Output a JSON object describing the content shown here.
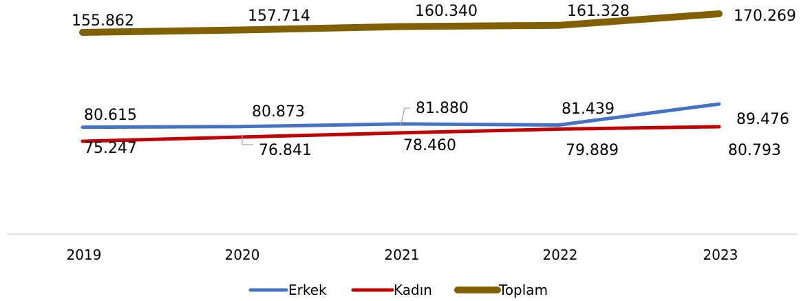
{
  "chart_data": {
    "type": "line",
    "title": "",
    "xlabel": "",
    "ylabel": "",
    "categories": [
      "2019",
      "2020",
      "2021",
      "2022",
      "2023"
    ],
    "series": [
      {
        "name": "Erkek",
        "color": "#4472C4",
        "values": [
          80615,
          80873,
          81880,
          81439,
          89476
        ],
        "labels": [
          "80.615",
          "80.873",
          "81.880",
          "81.439",
          "89.476"
        ]
      },
      {
        "name": "Kadın",
        "color": "#C00000",
        "values": [
          75247,
          76841,
          78460,
          79889,
          80793
        ],
        "labels": [
          "75.247",
          "76.841",
          "78.460",
          "79.889",
          "80.793"
        ]
      },
      {
        "name": "Toplam",
        "color": "#806000",
        "values": [
          155862,
          157714,
          160340,
          161328,
          170269
        ],
        "labels": [
          "155.862",
          "157.714",
          "160.340",
          "161.328",
          "170.269"
        ]
      }
    ],
    "grid": false,
    "legend_position": "bottom"
  }
}
